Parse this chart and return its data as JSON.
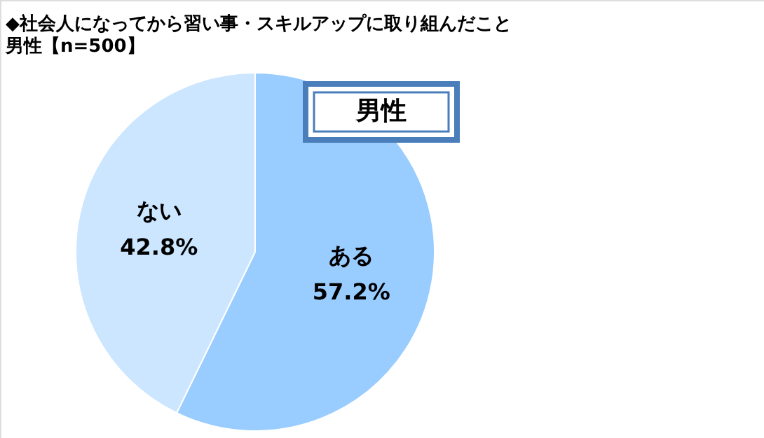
{
  "chart_data": {
    "type": "pie",
    "title": "◆社会人になってから習い事・スキルアップに取り組んだこと",
    "subtitle": "男性【n=500】",
    "categories": [
      "ある",
      "ない"
    ],
    "values": [
      57.2,
      42.8
    ],
    "colors": [
      "#99ccff",
      "#cce6ff"
    ],
    "value_labels": [
      "57.2%",
      "42.8%"
    ],
    "annotations": [
      "男性"
    ]
  }
}
